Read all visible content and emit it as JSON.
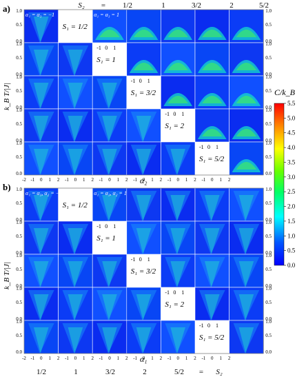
{
  "chart_data": [
    {
      "type": "heatmap",
      "panel_label": "a)",
      "col_header": [
        "S₂",
        "=",
        "1/2",
        "1",
        "3/2",
        "2",
        "5/2"
      ],
      "row_labels": [
        "S₁ = 1/2",
        "S₁ = 1",
        "S₁ = 3/2",
        "S₁ = 2",
        "S₁ = 5/2"
      ],
      "param_labels": [
        "α₁ = α₃ = −1",
        "α₁ = α₃ = 1"
      ],
      "xlabel": "α₂",
      "ylabel": "k_B T/|J|",
      "x_ticks": [
        "-2",
        "-1",
        "0",
        "1",
        "2"
      ],
      "inset_x_ticks": [
        "-1",
        "0",
        "1"
      ],
      "y_ticks": [
        "0.0",
        "0.5",
        "1.0"
      ],
      "xlim": [
        -2,
        2
      ],
      "ylim": [
        0,
        1.0
      ]
    },
    {
      "type": "heatmap",
      "panel_label": "b)",
      "col_header_bottom": [
        "1/2",
        "1",
        "3/2",
        "2",
        "5/2",
        "=",
        "S₂"
      ],
      "row_labels": [
        "S₁ = 1/2",
        "S₁ = 1",
        "S₁ = 3/2",
        "S₁ = 2",
        "S₁ = 5/2"
      ],
      "param_labels": [
        "α₁ = α₃, α₂ = −1",
        "α₁ = α₃, α₂ = 1"
      ],
      "xlabel": "α₁",
      "ylabel": "k_B T/|J|",
      "x_ticks": [
        "-2",
        "-1",
        "0",
        "1",
        "2"
      ],
      "inset_x_ticks": [
        "-1",
        "0",
        "1"
      ],
      "y_ticks": [
        "0.0",
        "0.5",
        "1.0"
      ],
      "xlim": [
        -2,
        2
      ],
      "ylim": [
        0,
        1.0
      ]
    },
    {
      "type": "colorbar",
      "title": "C/k_B",
      "ticks": [
        "0.0",
        "0.5",
        "1.0",
        "1.5",
        "2.0",
        "2.5",
        "3.0",
        "3.5",
        "4.0",
        "4.5",
        "5.0",
        "5.5"
      ],
      "range": [
        0,
        5.5
      ],
      "colors": [
        "#0000ff",
        "#00aaff",
        "#00ffff",
        "#00ff66",
        "#66ff00",
        "#ffff00",
        "#ff8800",
        "#ff0000"
      ]
    }
  ]
}
